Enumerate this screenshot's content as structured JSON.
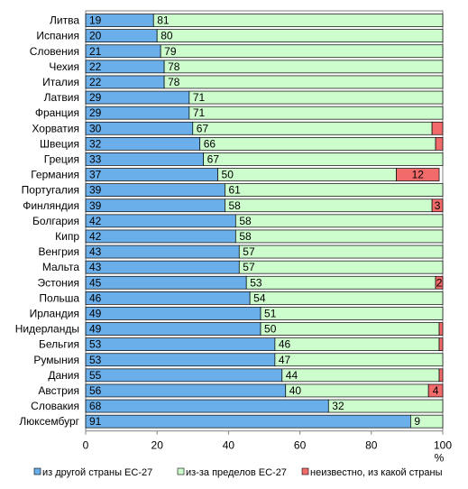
{
  "chart_data": {
    "type": "bar",
    "orientation": "horizontal",
    "stacked": true,
    "xlim": [
      0,
      100
    ],
    "xticks": [
      "0",
      "20",
      "40",
      "60",
      "80",
      "100"
    ],
    "xunit": "%",
    "legend_position": "bottom",
    "colors": {
      "series_1": "#6aaeea",
      "series_2": "#cdfccd",
      "series_3": "#f26b6b",
      "border": "#000000",
      "frame": "#808080"
    },
    "categories": [
      "Литва",
      "Испания",
      "Словения",
      "Чехия",
      "Италия",
      "Латвия",
      "Франция",
      "Хорватия",
      "Швеция",
      "Греция",
      "Германия",
      "Португалия",
      "Финляндия",
      "Болгария",
      "Кипр",
      "Венгрия",
      "Мальта",
      "Эстония",
      "Польша",
      "Ирландия",
      "Нидерланды",
      "Бельгия",
      "Румыния",
      "Дания",
      "Австрия",
      "Словакия",
      "Люксембург"
    ],
    "series": [
      {
        "name": "из другой страны ЕС-27",
        "values": [
          19,
          20,
          21,
          22,
          22,
          29,
          29,
          30,
          32,
          33,
          37,
          39,
          39,
          42,
          42,
          43,
          43,
          45,
          46,
          49,
          49,
          53,
          53,
          55,
          56,
          68,
          91
        ]
      },
      {
        "name": "из-за пределов ЕС-27",
        "values": [
          81,
          80,
          79,
          78,
          78,
          71,
          71,
          67,
          66,
          67,
          50,
          61,
          58,
          58,
          58,
          57,
          57,
          53,
          54,
          51,
          50,
          46,
          47,
          44,
          40,
          32,
          9
        ]
      },
      {
        "name": "неизвестно, из какой страны",
        "values": [
          0,
          0,
          0,
          0,
          0,
          0,
          0,
          3,
          2,
          0,
          12,
          0,
          3,
          0,
          0,
          0,
          0,
          2,
          0,
          0,
          1,
          1,
          0,
          1,
          4,
          0,
          0
        ]
      }
    ],
    "labels": [
      [
        "19",
        "81",
        ""
      ],
      [
        "20",
        "80",
        ""
      ],
      [
        "21",
        "79",
        ""
      ],
      [
        "22",
        "78",
        ""
      ],
      [
        "22",
        "78",
        ""
      ],
      [
        "29",
        "71",
        ""
      ],
      [
        "29",
        "71",
        ""
      ],
      [
        "30",
        "67",
        ""
      ],
      [
        "32",
        "66",
        ""
      ],
      [
        "33",
        "67",
        ""
      ],
      [
        "37",
        "50",
        "12"
      ],
      [
        "39",
        "61",
        ""
      ],
      [
        "39",
        "58",
        "3"
      ],
      [
        "42",
        "58",
        ""
      ],
      [
        "42",
        "58",
        ""
      ],
      [
        "43",
        "57",
        ""
      ],
      [
        "43",
        "57",
        ""
      ],
      [
        "45",
        "53",
        "2"
      ],
      [
        "46",
        "54",
        ""
      ],
      [
        "49",
        "51",
        ""
      ],
      [
        "49",
        "50",
        ""
      ],
      [
        "53",
        "46",
        ""
      ],
      [
        "53",
        "47",
        ""
      ],
      [
        "55",
        "44",
        ""
      ],
      [
        "56",
        "40",
        "4"
      ],
      [
        "68",
        "32",
        ""
      ],
      [
        "91",
        "9",
        ""
      ]
    ]
  }
}
